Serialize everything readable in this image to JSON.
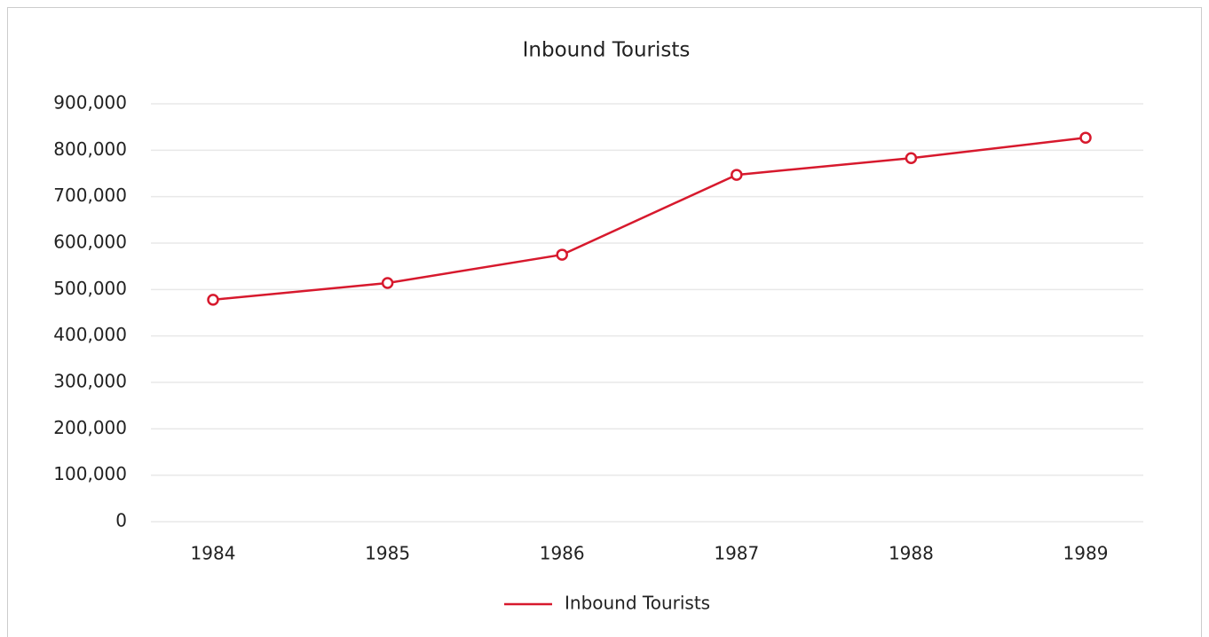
{
  "chart_data": {
    "type": "line",
    "title": "Inbound Tourists",
    "categories": [
      "1984",
      "1985",
      "1986",
      "1987",
      "1988",
      "1989"
    ],
    "series": [
      {
        "name": "Inbound Tourists",
        "color": "#d7192d",
        "values": [
          478000,
          514000,
          575000,
          747000,
          783000,
          827000
        ]
      }
    ],
    "ylim": [
      0,
      900000
    ],
    "yticks": [
      0,
      {
        "value": 100000,
        "label": "100,000"
      },
      {
        "value": 200000,
        "label": "200,000"
      },
      {
        "value": 300000,
        "label": "300,000"
      },
      {
        "value": 400000,
        "label": "400,000"
      },
      {
        "value": 500000,
        "label": "500,000"
      },
      {
        "value": 600000,
        "label": "600,000"
      },
      {
        "value": 700000,
        "label": "700,000"
      },
      {
        "value": 800000,
        "label": "800,000"
      },
      {
        "value": 900000,
        "label": "900,000"
      }
    ],
    "grid": true,
    "legend": "bottom"
  }
}
